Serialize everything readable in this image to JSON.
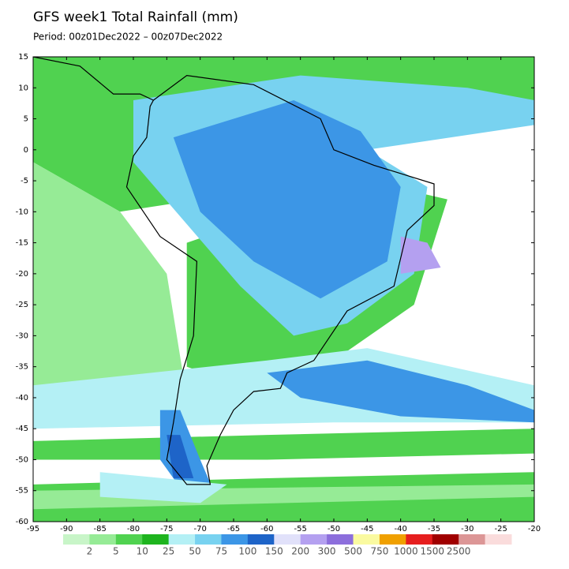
{
  "title": "GFS week1 Total Rainfall (mm)",
  "subtitle": "Period: 00z01Dec2022 – 00z07Dec2022",
  "map": {
    "xlim": [
      -95,
      -20
    ],
    "ylim": [
      -60,
      15
    ],
    "xticks": [
      -95,
      -90,
      -85,
      -80,
      -75,
      -70,
      -65,
      -60,
      -55,
      -50,
      -45,
      -40,
      -35,
      -30,
      -25,
      -20
    ],
    "yticks": [
      15,
      10,
      5,
      0,
      -5,
      -10,
      -15,
      -20,
      -25,
      -30,
      -35,
      -40,
      -45,
      -50,
      -55,
      -60
    ]
  },
  "colorbar": {
    "labels": [
      "2",
      "5",
      "10",
      "25",
      "50",
      "75",
      "100",
      "150",
      "200",
      "300",
      "500",
      "750",
      "1000",
      "1500",
      "2500"
    ],
    "colors": [
      "#c8f5c8",
      "#96eb96",
      "#50d250",
      "#1eb41e",
      "#b4f0f5",
      "#78d2f0",
      "#3c96e6",
      "#1e64c8",
      "#e1e1fa",
      "#b4a0f0",
      "#8c6edc",
      "#fafaa0",
      "#f0a000",
      "#e61e1e",
      "#a00000",
      "#dc9696",
      "#fadcdc"
    ]
  }
}
